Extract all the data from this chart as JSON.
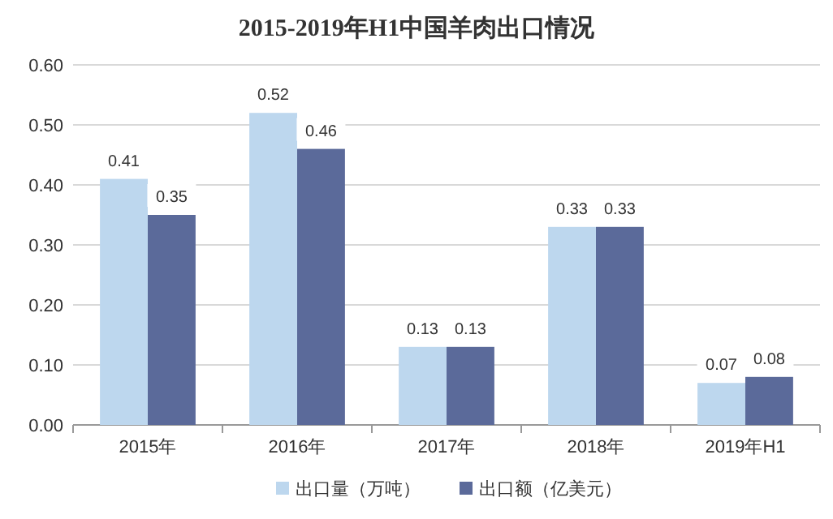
{
  "chart_data": {
    "type": "bar",
    "title": "2015-2019年H1中国羊肉出口情况",
    "categories": [
      "2015年",
      "2016年",
      "2017年",
      "2018年",
      "2019年H1"
    ],
    "series": [
      {
        "name": "出口量（万吨）",
        "color": "#bdd7ee",
        "values": [
          0.41,
          0.52,
          0.13,
          0.33,
          0.07
        ]
      },
      {
        "name": "出口额（亿美元）",
        "color": "#5b6a9a",
        "values": [
          0.35,
          0.46,
          0.13,
          0.33,
          0.08
        ]
      }
    ],
    "ylim": [
      0,
      0.6
    ],
    "yticks": [
      {
        "value": 0,
        "label": "0.00"
      },
      {
        "value": 0.1,
        "label": "0.10"
      },
      {
        "value": 0.2,
        "label": "0.20"
      },
      {
        "value": 0.3,
        "label": "0.30"
      },
      {
        "value": 0.4,
        "label": "0.40"
      },
      {
        "value": 0.5,
        "label": "0.50"
      },
      {
        "value": 0.6,
        "label": "0.60"
      }
    ],
    "grid": "y",
    "legend": "bottom",
    "data_labels": true
  }
}
